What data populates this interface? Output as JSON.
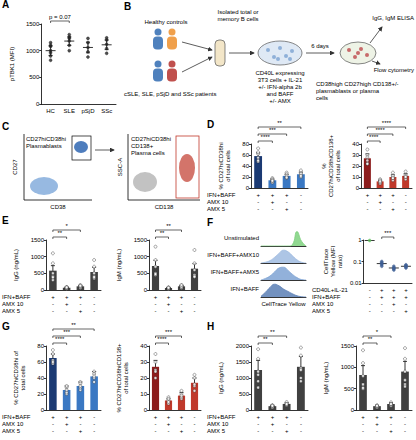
{
  "chart_data": [
    {
      "panel": "A",
      "type": "dot",
      "categories": [
        "HC",
        "SLE",
        "pSjD",
        "SSc"
      ],
      "y_label": "pTBK1 (MFI)",
      "ylim": [
        0,
        1500
      ],
      "yticks": [
        0,
        500,
        1000,
        1500
      ],
      "values": [
        1000,
        1180,
        1060,
        1110
      ],
      "errors": [
        90,
        80,
        100,
        90
      ],
      "points": [
        [
          820,
          900,
          960,
          1000,
          1080,
          1150,
          1100
        ],
        [
          1000,
          1100,
          1180,
          1250,
          1300,
          1230
        ],
        [
          880,
          980,
          1060,
          1150,
          1230
        ],
        [
          950,
          1040,
          1120,
          1200,
          1240
        ]
      ],
      "color": "#222222",
      "comparisons": [
        {
          "from": 0,
          "to": 1,
          "label": "p = 0.07"
        }
      ]
    },
    {
      "panel": "D",
      "type": "bar",
      "conditions": {
        "rows": [
          "IFN+BAFF",
          "AMX 10",
          "AMX 5"
        ],
        "signs": [
          [
            "+",
            "+",
            "+",
            "-"
          ],
          [
            "-",
            "+",
            "-",
            "-"
          ],
          [
            "-",
            "-",
            "+",
            "-"
          ]
        ]
      },
      "y_label": "% CD27hiCD38hi of total cells",
      "ylim": [
        0,
        80
      ],
      "yticks": [
        0,
        20,
        40,
        60,
        80
      ],
      "values": [
        58,
        14,
        22,
        25
      ],
      "errors": [
        6,
        2,
        3,
        4
      ],
      "points": [
        [
          72,
          62,
          48,
          55,
          65,
          50
        ],
        [
          10,
          12,
          18,
          16,
          14,
          13
        ],
        [
          18,
          20,
          28,
          25,
          22,
          19
        ],
        [
          20,
          28,
          24,
          32,
          26,
          22
        ]
      ],
      "colors": [
        "#1b3a73",
        "#3a78c3",
        "#3a78c3",
        "#3a78c3"
      ],
      "comparisons": [
        {
          "from": 0,
          "to": 1,
          "label": "****"
        },
        {
          "from": 0,
          "to": 2,
          "label": "***"
        },
        {
          "from": 0,
          "to": 3,
          "label": "**"
        }
      ]
    },
    {
      "type": "bar",
      "conditions": {
        "rows": [
          "IFN+BAFF",
          "AMX 10",
          "AMX 5"
        ],
        "signs": [
          [
            "+",
            "+",
            "+",
            "-"
          ],
          [
            "-",
            "+",
            "-",
            "-"
          ],
          [
            "-",
            "-",
            "+",
            "-"
          ]
        ]
      },
      "y_label": "% CD27hiCD38hiCD138+ of total cells",
      "ylim": [
        0,
        40
      ],
      "yticks": [
        0,
        10,
        20,
        30,
        40
      ],
      "values": [
        27,
        6,
        10,
        11
      ],
      "errors": [
        4,
        1,
        2,
        2
      ],
      "points": [
        [
          35,
          30,
          25,
          22,
          28,
          22
        ],
        [
          4,
          6,
          8,
          5,
          7,
          6
        ],
        [
          7,
          10,
          14,
          9,
          11,
          9
        ],
        [
          8,
          12,
          15,
          10,
          11,
          10
        ]
      ],
      "colors": [
        "#8c1c1c",
        "#c0392b",
        "#c0392b",
        "#c0392b"
      ],
      "comparisons": [
        {
          "from": 0,
          "to": 1,
          "label": "****"
        },
        {
          "from": 0,
          "to": 2,
          "label": "****"
        },
        {
          "from": 0,
          "to": 3,
          "label": "****"
        }
      ]
    },
    {
      "panel": "E",
      "type": "bar",
      "conditions": {
        "rows": [
          "IFN+BAFF",
          "AMX 10",
          "AMX 5"
        ],
        "signs": [
          [
            "+",
            "+",
            "+",
            "-"
          ],
          [
            "-",
            "+",
            "-",
            "-"
          ],
          [
            "-",
            "-",
            "+",
            "-"
          ]
        ]
      },
      "y_label": "IgG (ng/mL)",
      "ylim": [
        0,
        1500
      ],
      "yticks": [
        0,
        500,
        1000,
        1500
      ],
      "values": [
        580,
        70,
        110,
        540
      ],
      "errors": [
        150,
        20,
        30,
        140
      ],
      "points": [
        [
          1100,
          800,
          500,
          400,
          300,
          380
        ],
        [
          40,
          60,
          80,
          90,
          70,
          80
        ],
        [
          60,
          90,
          150,
          120,
          110,
          130
        ],
        [
          900,
          700,
          500,
          400,
          350,
          390
        ]
      ],
      "colors": [
        "#404040",
        "#404040",
        "#404040",
        "#404040"
      ],
      "comparisons": [
        {
          "from": 0,
          "to": 1,
          "label": "**"
        },
        {
          "from": 0,
          "to": 2,
          "label": "*"
        }
      ]
    },
    {
      "type": "bar",
      "conditions": {
        "rows": [
          "IFN+BAFF",
          "AMX 10",
          "AMX 5"
        ],
        "signs": [
          [
            "+",
            "+",
            "+",
            "-"
          ],
          [
            "-",
            "+",
            "-",
            "-"
          ],
          [
            "-",
            "-",
            "+",
            "-"
          ]
        ]
      },
      "y_label": "IgM (ng/mL)",
      "ylim": [
        0,
        1500
      ],
      "yticks": [
        0,
        500,
        1000,
        1500
      ],
      "values": [
        720,
        60,
        110,
        640
      ],
      "errors": [
        170,
        20,
        30,
        150
      ],
      "points": [
        [
          1300,
          900,
          700,
          500,
          450,
          480
        ],
        [
          30,
          50,
          70,
          80,
          60,
          70
        ],
        [
          60,
          90,
          140,
          120,
          100,
          150
        ],
        [
          1200,
          800,
          600,
          450,
          400,
          400
        ]
      ],
      "colors": [
        "#404040",
        "#404040",
        "#404040",
        "#404040"
      ],
      "comparisons": [
        {
          "from": 0,
          "to": 1,
          "label": "**"
        },
        {
          "from": 0,
          "to": 2,
          "label": "**"
        }
      ]
    },
    {
      "panel": "F",
      "type": "ridgeline",
      "x_label": "CellTrace Yellow",
      "xlim": [
        0,
        100
      ],
      "ylim": [
        0,
        1
      ],
      "tick_labels": false,
      "x": [
        0,
        10,
        20,
        30,
        40,
        50,
        60,
        70,
        80,
        90,
        100
      ],
      "series": [
        {
          "name": "Unstimulated",
          "color": "#7ed17e",
          "values": [
            0,
            0,
            0,
            0,
            0,
            0,
            0,
            0.1,
            0.9,
            0.3,
            0
          ]
        },
        {
          "name": "IFN+BAFF+AMX10",
          "color": "#9fbbe0",
          "values": [
            0,
            0.05,
            0.15,
            0.35,
            0.6,
            0.8,
            0.7,
            0.45,
            0.2,
            0.05,
            0
          ]
        },
        {
          "name": "IFN+BAFF+AMX5",
          "color": "#7fa3d3",
          "values": [
            0,
            0.1,
            0.25,
            0.5,
            0.75,
            0.8,
            0.6,
            0.35,
            0.15,
            0.03,
            0
          ]
        },
        {
          "name": "IFN+BAFF",
          "color": "#5b7fb5",
          "values": [
            0.05,
            0.3,
            0.6,
            0.8,
            0.7,
            0.5,
            0.35,
            0.2,
            0.08,
            0.02,
            0
          ]
        }
      ]
    },
    {
      "type": "dot",
      "conditions": {
        "rows": [
          "CD40L+IL-21",
          "IFN+BAFF",
          "AMX 10",
          "AMX 5"
        ],
        "signs": [
          [
            "-",
            "+",
            "+",
            "+"
          ],
          [
            "-",
            "+",
            "+",
            "+"
          ],
          [
            "-",
            "-",
            "+",
            "-"
          ],
          [
            "-",
            "-",
            "-",
            "+"
          ]
        ]
      },
      "y_label": "CellTrace Yellow (MFI ratio)",
      "log": "y",
      "ylim": [
        0.01,
        1
      ],
      "yticks": [
        0.01,
        0.1,
        1
      ],
      "values": [
        0.95,
        0.08,
        0.05,
        0.06
      ],
      "points": [
        [
          0.95
        ],
        [
          0.1,
          0.08,
          0.07,
          0.09,
          0.06
        ],
        [
          0.05,
          0.04,
          0.06,
          0.05,
          0.045
        ],
        [
          0.07,
          0.06,
          0.05,
          0.065,
          0.055
        ]
      ],
      "colors": [
        "#5ec15e",
        "#3f5f95",
        "#3f5f95",
        "#3f5f95"
      ],
      "comparisons": [
        {
          "from": 1,
          "to": 2,
          "label": "***"
        }
      ]
    },
    {
      "panel": "G",
      "type": "bar",
      "conditions": {
        "rows": [
          "IFN+BAFF",
          "AMX 10",
          "AMX 5"
        ],
        "signs": [
          [
            "+",
            "+",
            "+",
            "-"
          ],
          [
            "-",
            "+",
            "-",
            "-"
          ],
          [
            "-",
            "-",
            "+",
            "-"
          ]
        ]
      },
      "y_label": "% CD27hiCD38hi of total cells",
      "ylim": [
        0,
        80
      ],
      "yticks": [
        0,
        20,
        40,
        60,
        80
      ],
      "values": [
        65,
        25,
        30,
        42
      ],
      "errors": [
        5,
        5,
        5,
        6
      ],
      "points": [
        [
          75,
          70,
          62,
          58,
          60
        ],
        [
          20,
          28,
          30,
          22,
          25
        ],
        [
          25,
          35,
          28,
          33,
          30
        ],
        [
          35,
          48,
          40,
          45,
          42
        ]
      ],
      "colors": [
        "#1b3a73",
        "#3a78c3",
        "#3a78c3",
        "#3a78c3"
      ],
      "comparisons": [
        {
          "from": 0,
          "to": 1,
          "label": "****"
        },
        {
          "from": 0,
          "to": 2,
          "label": "***"
        },
        {
          "from": 0,
          "to": 3,
          "label": "**"
        }
      ]
    },
    {
      "type": "bar",
      "conditions": {
        "rows": [
          "IFN+BAFF",
          "AMX 10",
          "AMX 5"
        ],
        "signs": [
          [
            "+",
            "+",
            "+",
            "-"
          ],
          [
            "-",
            "+",
            "-",
            "-"
          ],
          [
            "-",
            "-",
            "+",
            "-"
          ]
        ]
      },
      "y_label": "% CD27hiCD38hiCD138+ of total cells",
      "ylim": [
        0,
        40
      ],
      "yticks": [
        0,
        10,
        20,
        30,
        40
      ],
      "values": [
        27,
        6,
        9,
        17
      ],
      "errors": [
        4,
        1,
        2,
        3
      ],
      "points": [
        [
          35,
          30,
          25,
          20,
          24
        ],
        [
          4,
          6,
          8,
          5,
          7
        ],
        [
          7,
          10,
          12,
          8,
          9
        ],
        [
          12,
          20,
          15,
          22,
          16
        ]
      ],
      "colors": [
        "#8c1c1c",
        "#c0392b",
        "#c0392b",
        "#c0392b"
      ],
      "comparisons": [
        {
          "from": 0,
          "to": 1,
          "label": "****"
        },
        {
          "from": 0,
          "to": 2,
          "label": "***"
        }
      ]
    },
    {
      "panel": "H",
      "type": "bar",
      "conditions": {
        "rows": [
          "IFN+BAFF",
          "AMX 10",
          "AMX 5"
        ],
        "signs": [
          [
            "+",
            "+",
            "+",
            "-"
          ],
          [
            "-",
            "+",
            "-",
            "-"
          ],
          [
            "-",
            "-",
            "+",
            "-"
          ]
        ]
      },
      "y_label": "IgG (ng/mL)",
      "ylim": [
        0,
        2000
      ],
      "yticks": [
        0,
        500,
        1000,
        1500,
        2000
      ],
      "values": [
        1250,
        120,
        190,
        1350
      ],
      "errors": [
        300,
        30,
        40,
        320
      ],
      "points": [
        [
          1900,
          1600,
          1200,
          900,
          700,
          1100
        ],
        [
          80,
          100,
          150,
          120,
          140,
          130
        ],
        [
          150,
          200,
          250,
          180,
          170,
          190
        ],
        [
          1950,
          1700,
          1300,
          1000,
          900,
          1250
        ]
      ],
      "colors": [
        "#404040",
        "#404040",
        "#404040",
        "#404040"
      ],
      "comparisons": [
        {
          "from": 0,
          "to": 1,
          "label": "**"
        },
        {
          "from": 0,
          "to": 2,
          "label": "**"
        }
      ]
    },
    {
      "type": "bar",
      "conditions": {
        "rows": [
          "IFN+BAFF",
          "AMX 10",
          "AMX 5"
        ],
        "signs": [
          [
            "+",
            "+",
            "+",
            "-"
          ],
          [
            "-",
            "+",
            "-",
            "-"
          ],
          [
            "-",
            "-",
            "+",
            "-"
          ]
        ]
      },
      "y_label": "IgM (ng/mL)",
      "ylim": [
        0,
        1500
      ],
      "yticks": [
        0,
        500,
        1000,
        1500
      ],
      "values": [
        820,
        90,
        140,
        900
      ],
      "errors": [
        220,
        20,
        30,
        240
      ],
      "points": [
        [
          1400,
          1100,
          800,
          600,
          500,
          520
        ],
        [
          60,
          80,
          100,
          110,
          90,
          100
        ],
        [
          100,
          150,
          180,
          130,
          140,
          140
        ],
        [
          1450,
          1200,
          900,
          700,
          600,
          550
        ]
      ],
      "colors": [
        "#404040",
        "#404040",
        "#404040",
        "#404040"
      ],
      "comparisons": [
        {
          "from": 0,
          "to": 1,
          "label": "**"
        },
        {
          "from": 0,
          "to": 2,
          "label": "*"
        }
      ]
    }
  ],
  "diagrams": {
    "B": {
      "panel": "B",
      "healthy": "Healthy controls",
      "patients": "cSLE, SLE, pSjD and SSc patients",
      "isolation": "Isolated total or memory B cells",
      "culture": [
        "CD40L expressing 3T3 cells + IL-21",
        "+/- IFN-alpha 2b and BAFF",
        "+/- AMX"
      ],
      "duration": "6 days",
      "readouts": [
        "IgG, IgM ELISA",
        "Flow cytometry"
      ],
      "output": "CD38high CD27high CD138+/- plasmablasts or plasma cells"
    },
    "C": {
      "panel": "C",
      "plots": [
        {
          "x_label": "CD38",
          "y_label": "CD27",
          "gate": "CD27hiCD38hi Plasmablasts"
        },
        {
          "x_label": "CD138",
          "y_label": "SSC-A",
          "gate": "CD27hiCD38hi CD138+ Plasma cells"
        }
      ]
    }
  }
}
